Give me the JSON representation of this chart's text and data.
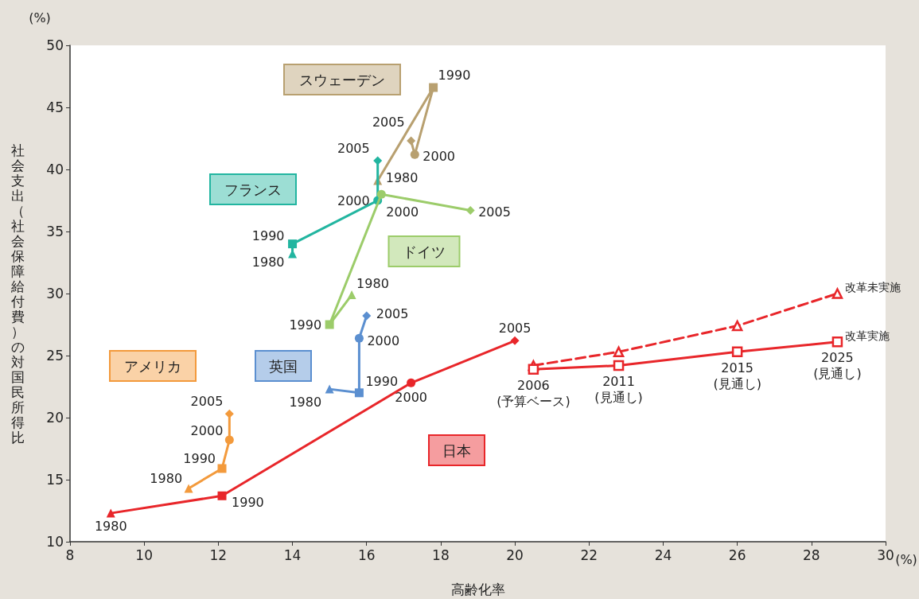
{
  "chart_data": {
    "type": "line",
    "xlabel": "高齢化率",
    "ylabel": "社会支出（社会保障給付費）の対国民所得比",
    "xlim": [
      8,
      30
    ],
    "xticks": [
      8,
      10,
      12,
      14,
      16,
      18,
      20,
      22,
      24,
      26,
      28,
      30
    ],
    "ylim": [
      10,
      50
    ],
    "yticks": [
      10,
      15,
      20,
      25,
      30,
      35,
      40,
      45,
      50
    ],
    "grid": false,
    "series": [
      {
        "name": "日本",
        "color": "#e8262a",
        "x": [
          9.1,
          12.1,
          17.2,
          20.0
        ],
        "values": [
          12.3,
          13.7,
          22.8,
          26.2
        ],
        "marker": [
          "triangle",
          "square",
          "circle",
          "diamond"
        ]
      },
      {
        "name": "アメリカ",
        "color": "#f39a3c",
        "x": [
          11.2,
          12.1,
          12.3,
          12.3
        ],
        "values": [
          14.3,
          15.9,
          18.2,
          20.3
        ],
        "marker": [
          "triangle",
          "square",
          "circle",
          "diamond"
        ]
      },
      {
        "name": "英国",
        "color": "#5b8fd0",
        "x": [
          15.0,
          15.8,
          15.8,
          16.0
        ],
        "values": [
          22.3,
          22.0,
          26.4,
          28.2
        ],
        "marker": [
          "triangle",
          "square",
          "circle",
          "diamond"
        ]
      },
      {
        "name": "ドイツ",
        "color": "#9ccc6a",
        "x": [
          15.6,
          15.0,
          16.4,
          18.8
        ],
        "values": [
          29.9,
          27.5,
          38.0,
          36.7
        ],
        "marker": [
          "triangle",
          "square",
          "circle",
          "diamond"
        ]
      },
      {
        "name": "フランス",
        "color": "#22b5a0",
        "x": [
          14.0,
          14.0,
          16.3,
          16.3
        ],
        "values": [
          33.2,
          34.0,
          37.5,
          40.7
        ],
        "marker": [
          "triangle",
          "square",
          "circle",
          "diamond"
        ]
      },
      {
        "name": "スウェーデン",
        "color": "#b8a070",
        "x": [
          16.3,
          17.8,
          17.3,
          17.2
        ],
        "values": [
          39.1,
          46.6,
          41.2,
          42.3
        ],
        "marker": [
          "triangle",
          "square",
          "circle",
          "diamond"
        ]
      },
      {
        "name": "改革実施",
        "color": "#e8262a",
        "x": [
          20.5,
          22.8,
          26.0,
          28.7
        ],
        "values": [
          23.9,
          24.2,
          25.3,
          26.1
        ],
        "marker": "square"
      },
      {
        "name": "改革未実施",
        "color": "#e8262a",
        "x": [
          20.5,
          22.8,
          26.0,
          28.7
        ],
        "values": [
          24.2,
          25.3,
          27.4,
          30.0
        ],
        "marker": "triangle",
        "line_style": "dashed"
      }
    ],
    "annotations": [
      "(%)",
      "(%)",
      {
        "text": "1980",
        "x": 9.1,
        "y": 12.3
      },
      {
        "text": "1990",
        "x": 12.1,
        "y": 13.7
      },
      {
        "text": "2000",
        "x": 17.2,
        "y": 22.8
      },
      {
        "text": "2005",
        "x": 20.0,
        "y": 26.2
      },
      {
        "text": "1980",
        "x": 11.2,
        "y": 14.3
      },
      {
        "text": "1990",
        "x": 12.1,
        "y": 15.9
      },
      {
        "text": "2000",
        "x": 12.3,
        "y": 18.2
      },
      {
        "text": "2005",
        "x": 12.3,
        "y": 20.3
      },
      {
        "text": "1980",
        "x": 15.0,
        "y": 22.3
      },
      {
        "text": "1990",
        "x": 15.8,
        "y": 22.0
      },
      {
        "text": "2000",
        "x": 15.8,
        "y": 26.4
      },
      {
        "text": "2005",
        "x": 16.0,
        "y": 28.2
      },
      {
        "text": "1980",
        "x": 15.6,
        "y": 29.9
      },
      {
        "text": "1990",
        "x": 15.0,
        "y": 27.5
      },
      {
        "text": "2000",
        "x": 16.4,
        "y": 38.0
      },
      {
        "text": "2005",
        "x": 18.8,
        "y": 36.7
      },
      {
        "text": "1980",
        "x": 14.0,
        "y": 33.2
      },
      {
        "text": "1990",
        "x": 14.0,
        "y": 34.0
      },
      {
        "text": "2000",
        "x": 16.3,
        "y": 37.5
      },
      {
        "text": "2005",
        "x": 16.3,
        "y": 40.7
      },
      {
        "text": "1980",
        "x": 16.3,
        "y": 39.1
      },
      {
        "text": "1990",
        "x": 17.8,
        "y": 46.6
      },
      {
        "text": "2000",
        "x": 17.3,
        "y": 41.2
      },
      {
        "text": "2005",
        "x": 17.2,
        "y": 42.3
      },
      {
        "text": "2006\n(予算ベース)",
        "x": 20.5,
        "y": 23.9
      },
      {
        "text": "2011\n(見通し)",
        "x": 22.8,
        "y": 24.2
      },
      {
        "text": "2015\n(見通し)",
        "x": 26.0,
        "y": 25.3
      },
      {
        "text": "2025\n(見通し)",
        "x": 28.7,
        "y": 26.1
      }
    ]
  }
}
